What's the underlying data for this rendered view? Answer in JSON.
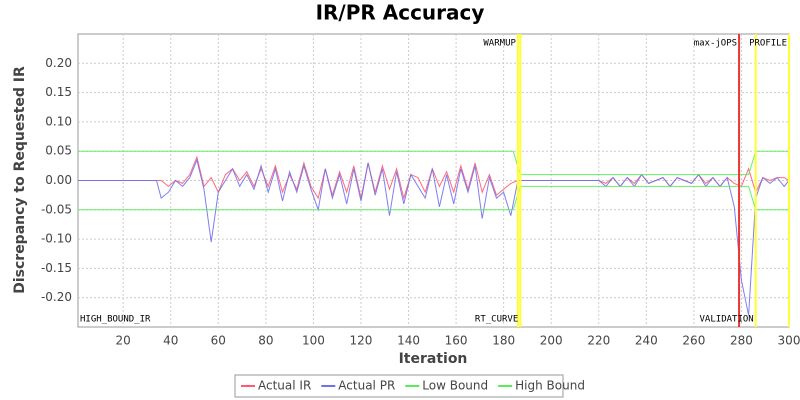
{
  "chart_data": {
    "type": "line",
    "title": "IR/PR Accuracy",
    "x_label": "Iteration",
    "y_label": "Discrepancy to Requested IR",
    "xlim": [
      1,
      300
    ],
    "ylim": [
      -0.25,
      0.25
    ],
    "xticks": [
      20,
      40,
      60,
      80,
      100,
      120,
      140,
      160,
      180,
      200,
      220,
      240,
      260,
      280,
      300
    ],
    "yticks": [
      {
        "value": -0.2,
        "label": "-0.20"
      },
      -0.15,
      {
        "value": -0.1,
        "label": "-0.10"
      },
      -0.05,
      {
        "value": 0,
        "label": "0.00"
      },
      0.05,
      {
        "value": 0.1,
        "label": "0.10"
      },
      0.15,
      {
        "value": 0.2,
        "label": "0.20"
      }
    ],
    "grid": true,
    "legend": "bottom",
    "x": [
      1,
      34,
      36,
      39,
      42,
      45,
      48,
      51,
      54,
      57,
      60,
      63,
      66,
      69,
      72,
      75,
      78,
      81,
      84,
      87,
      90,
      93,
      96,
      99,
      102,
      105,
      108,
      111,
      114,
      117,
      120,
      123,
      126,
      129,
      132,
      135,
      138,
      141,
      144,
      147,
      150,
      153,
      156,
      159,
      162,
      165,
      168,
      171,
      174,
      177,
      180,
      183,
      186,
      220,
      223,
      226,
      229,
      232,
      235,
      238,
      241,
      244,
      247,
      250,
      253,
      256,
      259,
      262,
      265,
      268,
      271,
      274,
      277,
      280,
      283,
      286,
      289,
      292,
      295,
      298,
      300
    ],
    "series": [
      {
        "name": "Actual IR",
        "color": "#ff5a6e",
        "values": [
          0,
          0,
          0,
          -0.01,
          0,
          -0.005,
          0.01,
          0.04,
          -0.01,
          0.005,
          -0.02,
          0.01,
          0.02,
          0,
          0.015,
          -0.01,
          0.02,
          -0.01,
          0.025,
          -0.02,
          0.01,
          -0.015,
          0.03,
          -0.01,
          -0.03,
          0.02,
          -0.025,
          0.015,
          -0.02,
          0.025,
          -0.03,
          0.03,
          -0.02,
          0.025,
          -0.015,
          0.02,
          -0.03,
          0.01,
          0.005,
          -0.02,
          0.02,
          -0.01,
          0.015,
          -0.02,
          0.025,
          -0.015,
          0.03,
          -0.02,
          0.01,
          -0.025,
          -0.015,
          -0.005,
          0,
          0,
          -0.005,
          0.005,
          -0.01,
          0.005,
          -0.005,
          0.01,
          -0.005,
          0,
          0.005,
          -0.01,
          0.005,
          0,
          -0.005,
          0.01,
          -0.005,
          0.005,
          -0.01,
          0.005,
          -0.005,
          -0.01,
          0.02,
          -0.02,
          0.005,
          0,
          0.005,
          0.005,
          0
        ]
      },
      {
        "name": "Actual PR",
        "color": "#7070f0",
        "values": [
          0,
          0,
          -0.03,
          -0.02,
          0,
          -0.01,
          0.005,
          0.035,
          -0.015,
          -0.105,
          -0.02,
          0,
          0.02,
          -0.01,
          0.01,
          -0.015,
          0.025,
          -0.02,
          0.02,
          -0.035,
          0.015,
          -0.02,
          0.025,
          -0.015,
          -0.05,
          0.02,
          -0.03,
          0.01,
          -0.04,
          0.02,
          -0.035,
          0.03,
          -0.025,
          0.02,
          -0.06,
          0.015,
          -0.04,
          0.01,
          -0.01,
          -0.03,
          0.02,
          -0.045,
          0.01,
          -0.04,
          0.02,
          -0.02,
          0.025,
          -0.065,
          0.005,
          -0.03,
          -0.02,
          -0.06,
          0,
          0,
          -0.01,
          0.005,
          -0.01,
          0.005,
          -0.01,
          0.01,
          -0.005,
          0,
          0.005,
          -0.01,
          0.005,
          0,
          -0.005,
          0.01,
          -0.01,
          0.005,
          -0.01,
          0.005,
          -0.045,
          -0.17,
          -0.23,
          -0.03,
          0.005,
          -0.005,
          0.005,
          -0.01,
          0
        ]
      },
      {
        "name": "Low Bound",
        "color": "#55ee55",
        "x": [
          1,
          184,
          187,
          283,
          286,
          300
        ],
        "values": [
          -0.05,
          -0.05,
          -0.01,
          -0.01,
          -0.05,
          -0.05
        ]
      },
      {
        "name": "High Bound",
        "color": "#55ee55",
        "x": [
          1,
          184,
          187,
          283,
          286,
          300
        ],
        "values": [
          0.05,
          0.05,
          0.01,
          0.01,
          0.05,
          0.05
        ]
      }
    ],
    "markers": [
      {
        "x": 1,
        "label": "HIGH_BOUND_IR",
        "position": "bottom",
        "anchor": "start"
      },
      {
        "x": 186,
        "label": "WARMUP",
        "position": "top",
        "anchor": "end",
        "color": "#ffff33"
      },
      {
        "x": 187,
        "label": "RT_CURVE",
        "position": "bottom",
        "anchor": "end",
        "color": "#ffff33"
      },
      {
        "x": 279,
        "label": "max-jOPS",
        "position": "top",
        "anchor": "end",
        "color": "#ee3333"
      },
      {
        "x": 286,
        "label": "VALIDATION",
        "position": "bottom",
        "anchor": "end",
        "color": "#ffff33"
      },
      {
        "x": 300,
        "label": "PROFILE",
        "position": "top",
        "anchor": "end",
        "color": "#ffff33"
      }
    ]
  }
}
